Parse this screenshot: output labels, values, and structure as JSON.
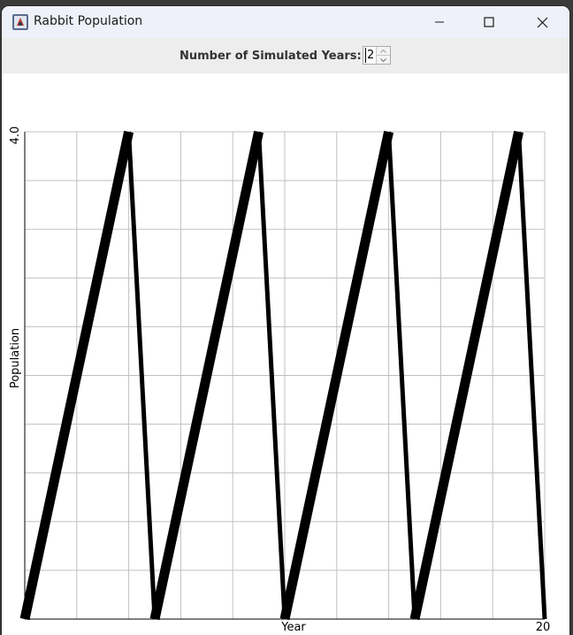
{
  "window": {
    "title": "Rabbit Population",
    "icons": {
      "app": "java-app-icon",
      "minimize": "minimize-icon",
      "maximize": "maximize-icon",
      "close": "close-icon"
    }
  },
  "toolbar": {
    "years_label": "Number of Simulated Years:",
    "years_value": "2"
  },
  "chart_data": {
    "type": "line",
    "title": "",
    "xlabel": "Year",
    "ylabel": "Population",
    "xlim": [
      0,
      20
    ],
    "ylim": [
      0,
      4.0
    ],
    "x_tick_labels": [
      "20"
    ],
    "y_tick_labels": [
      "4.0"
    ],
    "grid": true,
    "series": [
      {
        "x": [
          0,
          4,
          5,
          9,
          10,
          14,
          15,
          19,
          20
        ],
        "y": [
          0,
          4,
          0,
          4,
          0,
          4,
          0,
          4,
          0
        ]
      }
    ],
    "colors": {
      "line": "#000000",
      "grid": "#c0c0c0"
    }
  }
}
